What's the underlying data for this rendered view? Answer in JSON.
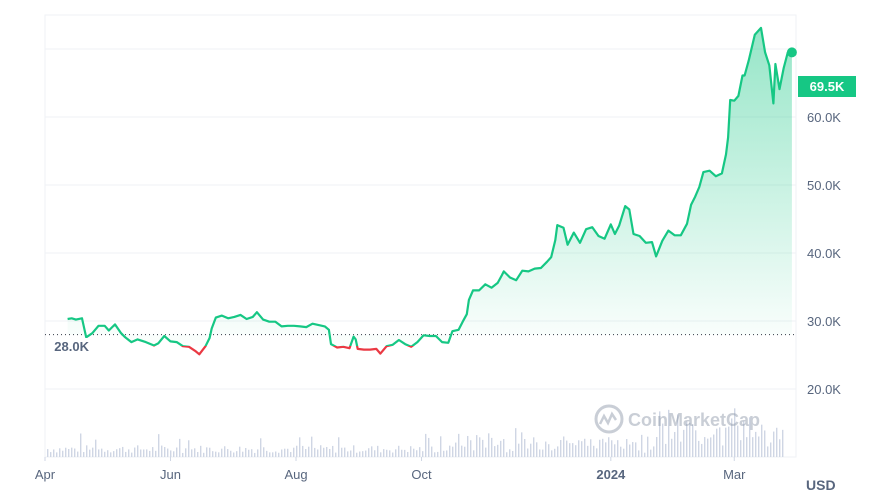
{
  "chart_data": {
    "type": "area",
    "title": "",
    "xlabel": "",
    "ylabel": "",
    "currency_label": "USD",
    "watermark": "CoinMarketCap",
    "ylim": [
      10000,
      75000
    ],
    "y_ticks": [
      {
        "value": 20000,
        "label": "20.0K"
      },
      {
        "value": 30000,
        "label": "30.0K"
      },
      {
        "value": 40000,
        "label": "40.0K"
      },
      {
        "value": 50000,
        "label": "50.0K"
      },
      {
        "value": 60000,
        "label": "60.0K"
      }
    ],
    "x_ticks": [
      {
        "date": "2023-04-01",
        "label": "Apr",
        "bold": false
      },
      {
        "date": "2023-06-01",
        "label": "Jun",
        "bold": false
      },
      {
        "date": "2023-08-01",
        "label": "Aug",
        "bold": false
      },
      {
        "date": "2023-10-01",
        "label": "Oct",
        "bold": false
      },
      {
        "date": "2024-01-01",
        "label": "2024",
        "bold": true
      },
      {
        "date": "2024-03-01",
        "label": "Mar",
        "bold": false
      }
    ],
    "x_range": [
      "2023-04-01",
      "2024-03-31"
    ],
    "baseline": {
      "value": 28000,
      "label": "28.0K"
    },
    "current": {
      "value": 69500,
      "label": "69.5K"
    },
    "colors": {
      "up": "#16c784",
      "down": "#ea3943",
      "volume": "#cfd6e4"
    },
    "series": [
      {
        "values": [
          [
            "2023-04-12",
            30300
          ],
          [
            "2023-04-14",
            30400
          ],
          [
            "2023-04-16",
            30200
          ],
          [
            "2023-04-19",
            30400
          ],
          [
            "2023-04-21",
            27600
          ],
          [
            "2023-04-24",
            28200
          ],
          [
            "2023-04-27",
            29300
          ],
          [
            "2023-04-30",
            29300
          ],
          [
            "2023-05-02",
            28600
          ],
          [
            "2023-05-05",
            29500
          ],
          [
            "2023-05-08",
            28200
          ],
          [
            "2023-05-10",
            27600
          ],
          [
            "2023-05-13",
            26900
          ],
          [
            "2023-05-16",
            27300
          ],
          [
            "2023-05-20",
            26900
          ],
          [
            "2023-05-24",
            26400
          ],
          [
            "2023-05-26",
            26700
          ],
          [
            "2023-05-29",
            27800
          ],
          [
            "2023-06-01",
            27000
          ],
          [
            "2023-06-04",
            26900
          ],
          [
            "2023-06-07",
            26300
          ],
          [
            "2023-06-10",
            26200
          ],
          [
            "2023-06-13",
            25600
          ],
          [
            "2023-06-15",
            25100
          ],
          [
            "2023-06-18",
            26300
          ],
          [
            "2023-06-20",
            27500
          ],
          [
            "2023-06-21",
            28900
          ],
          [
            "2023-06-23",
            30500
          ],
          [
            "2023-06-26",
            30800
          ],
          [
            "2023-06-29",
            30400
          ],
          [
            "2023-07-02",
            30600
          ],
          [
            "2023-07-05",
            30900
          ],
          [
            "2023-07-08",
            30300
          ],
          [
            "2023-07-11",
            30600
          ],
          [
            "2023-07-13",
            31300
          ],
          [
            "2023-07-16",
            30200
          ],
          [
            "2023-07-19",
            29900
          ],
          [
            "2023-07-22",
            29900
          ],
          [
            "2023-07-25",
            29200
          ],
          [
            "2023-07-28",
            29300
          ],
          [
            "2023-07-31",
            29300
          ],
          [
            "2023-08-03",
            29200
          ],
          [
            "2023-08-06",
            29100
          ],
          [
            "2023-08-09",
            29600
          ],
          [
            "2023-08-12",
            29400
          ],
          [
            "2023-08-15",
            29200
          ],
          [
            "2023-08-17",
            28700
          ],
          [
            "2023-08-18",
            26600
          ],
          [
            "2023-08-21",
            26100
          ],
          [
            "2023-08-24",
            26200
          ],
          [
            "2023-08-27",
            26000
          ],
          [
            "2023-08-29",
            27700
          ],
          [
            "2023-08-30",
            27300
          ],
          [
            "2023-08-31",
            25900
          ],
          [
            "2023-09-03",
            25800
          ],
          [
            "2023-09-06",
            25800
          ],
          [
            "2023-09-09",
            25900
          ],
          [
            "2023-09-11",
            25200
          ],
          [
            "2023-09-14",
            26300
          ],
          [
            "2023-09-17",
            26500
          ],
          [
            "2023-09-20",
            27200
          ],
          [
            "2023-09-23",
            26600
          ],
          [
            "2023-09-26",
            26200
          ],
          [
            "2023-09-29",
            26900
          ],
          [
            "2023-10-02",
            27900
          ],
          [
            "2023-10-05",
            27800
          ],
          [
            "2023-10-08",
            27800
          ],
          [
            "2023-10-11",
            26900
          ],
          [
            "2023-10-14",
            26800
          ],
          [
            "2023-10-16",
            28500
          ],
          [
            "2023-10-19",
            28700
          ],
          [
            "2023-10-21",
            29900
          ],
          [
            "2023-10-23",
            31000
          ],
          [
            "2023-10-24",
            33100
          ],
          [
            "2023-10-26",
            34500
          ],
          [
            "2023-10-29",
            34500
          ],
          [
            "2023-11-01",
            35400
          ],
          [
            "2023-11-04",
            34900
          ],
          [
            "2023-11-07",
            35600
          ],
          [
            "2023-11-09",
            36700
          ],
          [
            "2023-11-10",
            37300
          ],
          [
            "2023-11-13",
            36400
          ],
          [
            "2023-11-16",
            36000
          ],
          [
            "2023-11-19",
            37400
          ],
          [
            "2023-11-22",
            37300
          ],
          [
            "2023-11-25",
            37700
          ],
          [
            "2023-11-28",
            37800
          ],
          [
            "2023-12-01",
            38700
          ],
          [
            "2023-12-03",
            39400
          ],
          [
            "2023-12-05",
            41900
          ],
          [
            "2023-12-06",
            44100
          ],
          [
            "2023-12-09",
            43700
          ],
          [
            "2023-12-11",
            41200
          ],
          [
            "2023-12-14",
            43000
          ],
          [
            "2023-12-17",
            41500
          ],
          [
            "2023-12-20",
            43500
          ],
          [
            "2023-12-23",
            43800
          ],
          [
            "2023-12-26",
            42500
          ],
          [
            "2023-12-29",
            42100
          ],
          [
            "2024-01-01",
            44200
          ],
          [
            "2024-01-03",
            42800
          ],
          [
            "2024-01-05",
            44000
          ],
          [
            "2024-01-08",
            46900
          ],
          [
            "2024-01-10",
            46400
          ],
          [
            "2024-01-12",
            42800
          ],
          [
            "2024-01-15",
            42500
          ],
          [
            "2024-01-18",
            41500
          ],
          [
            "2024-01-21",
            41600
          ],
          [
            "2024-01-23",
            39500
          ],
          [
            "2024-01-26",
            41800
          ],
          [
            "2024-01-29",
            43300
          ],
          [
            "2024-02-01",
            42600
          ],
          [
            "2024-02-04",
            42600
          ],
          [
            "2024-02-07",
            44300
          ],
          [
            "2024-02-09",
            47100
          ],
          [
            "2024-02-11",
            48300
          ],
          [
            "2024-02-13",
            49700
          ],
          [
            "2024-02-15",
            51900
          ],
          [
            "2024-02-18",
            52100
          ],
          [
            "2024-02-21",
            51300
          ],
          [
            "2024-02-24",
            51700
          ],
          [
            "2024-02-26",
            54500
          ],
          [
            "2024-02-27",
            57000
          ],
          [
            "2024-02-28",
            62500
          ],
          [
            "2024-03-01",
            62400
          ],
          [
            "2024-03-03",
            63100
          ],
          [
            "2024-03-05",
            66100
          ],
          [
            "2024-03-06",
            66100
          ],
          [
            "2024-03-08",
            68300
          ],
          [
            "2024-03-11",
            72100
          ],
          [
            "2024-03-14",
            73100
          ],
          [
            "2024-03-16",
            69500
          ],
          [
            "2024-03-18",
            67600
          ],
          [
            "2024-03-20",
            62000
          ],
          [
            "2024-03-21",
            67800
          ],
          [
            "2024-03-23",
            64100
          ],
          [
            "2024-03-25",
            67200
          ],
          [
            "2024-03-27",
            69500
          ],
          [
            "2024-03-29",
            69500
          ]
        ]
      }
    ]
  }
}
